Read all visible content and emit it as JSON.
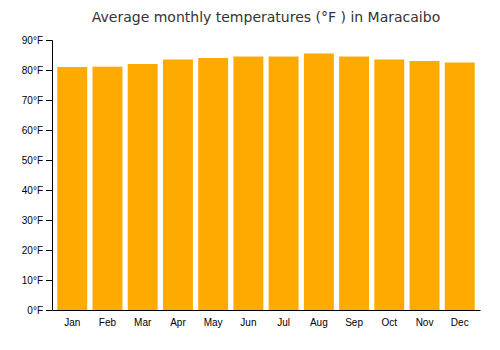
{
  "chart_data": {
    "type": "bar",
    "title": "Average monthly temperatures (°F ) in Maracaibo",
    "categories": [
      "Jan",
      "Feb",
      "Mar",
      "Apr",
      "May",
      "Jun",
      "Jul",
      "Aug",
      "Sep",
      "Oct",
      "Nov",
      "Dec"
    ],
    "values": [
      81.0,
      81.1,
      82.0,
      83.5,
      84.0,
      84.5,
      84.5,
      85.5,
      84.5,
      83.5,
      83.0,
      82.5
    ],
    "color": "#FFAA00",
    "ylim": [
      0,
      90
    ],
    "yticks": [
      {
        "value": 0,
        "label": "0°F"
      },
      {
        "value": 10,
        "label": "10°F"
      },
      {
        "value": 20,
        "label": "20°F"
      },
      {
        "value": 30,
        "label": "30°F"
      },
      {
        "value": 40,
        "label": "40°F"
      },
      {
        "value": 50,
        "label": "50°F"
      },
      {
        "value": 60,
        "label": "60°F"
      },
      {
        "value": 70,
        "label": "70°F"
      },
      {
        "value": 80,
        "label": "80°F"
      },
      {
        "value": 90,
        "label": "90°F"
      }
    ],
    "grid": false
  }
}
